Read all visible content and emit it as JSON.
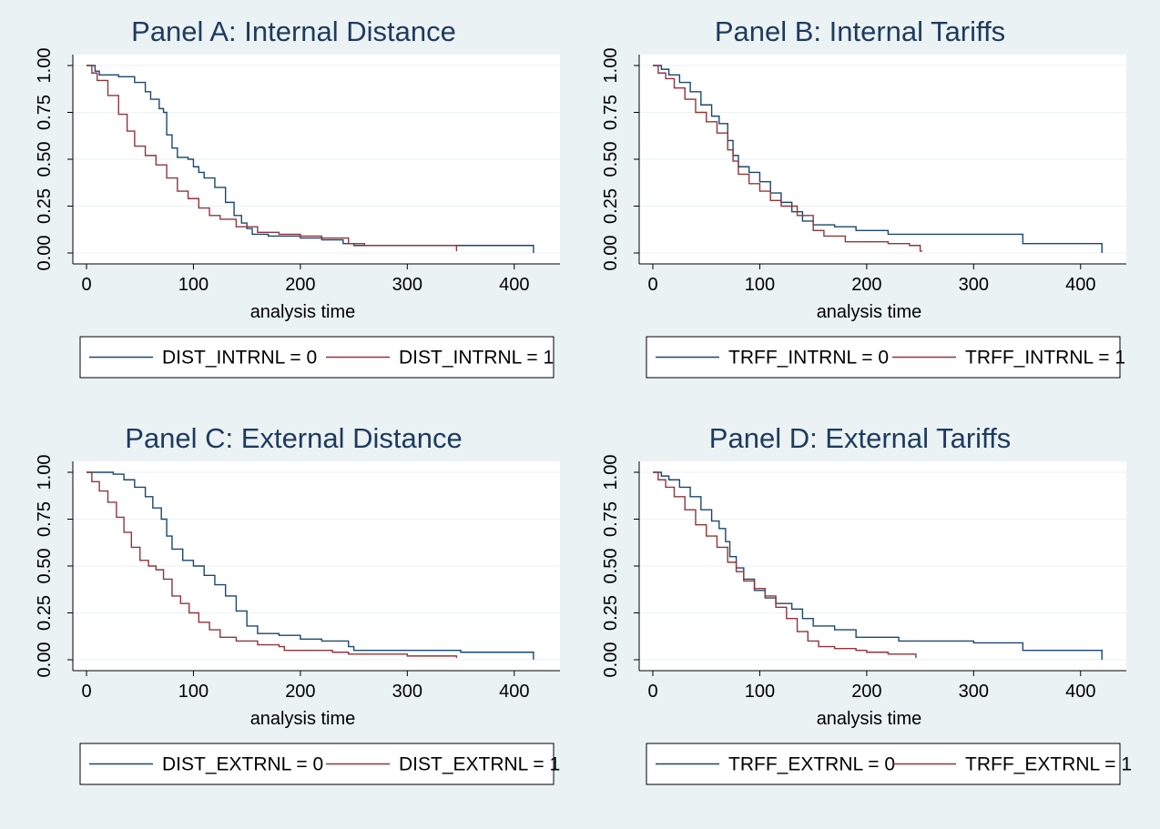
{
  "colors": {
    "background": "#eaf2f3",
    "plot_background": "#ffffff",
    "series_0": "#1a476f",
    "series_1": "#90353b",
    "title": "#1e3a5f"
  },
  "chart_data": [
    {
      "type": "line",
      "title": "Panel A: Internal Distance",
      "xlabel": "analysis time",
      "ylabel": "",
      "xlim": [
        0,
        430
      ],
      "ylim": [
        0,
        1
      ],
      "xticks": [
        "0",
        "100",
        "200",
        "300",
        "400"
      ],
      "yticks": [
        "0.00",
        "0.25",
        "0.50",
        "0.75",
        "1.00"
      ],
      "grid": true,
      "legend_position": "bottom",
      "series": [
        {
          "name": "DIST_INTRNL = 0",
          "color": "#1a476f",
          "x": [
            0,
            8,
            12,
            30,
            45,
            55,
            60,
            68,
            72,
            75,
            80,
            85,
            95,
            100,
            105,
            110,
            120,
            130,
            138,
            145,
            150,
            155,
            170,
            200,
            220,
            240,
            250,
            300,
            350,
            400,
            418
          ],
          "y": [
            1.0,
            0.97,
            0.95,
            0.94,
            0.91,
            0.86,
            0.82,
            0.77,
            0.75,
            0.63,
            0.56,
            0.51,
            0.5,
            0.46,
            0.43,
            0.4,
            0.35,
            0.27,
            0.2,
            0.16,
            0.13,
            0.1,
            0.09,
            0.08,
            0.07,
            0.05,
            0.04,
            0.04,
            0.04,
            0.04,
            0.0
          ]
        },
        {
          "name": "DIST_INTRNL = 1",
          "color": "#90353b",
          "x": [
            0,
            5,
            10,
            20,
            30,
            38,
            45,
            55,
            65,
            75,
            85,
            95,
            105,
            115,
            125,
            140,
            160,
            180,
            200,
            220,
            245,
            260,
            300,
            345,
            346
          ],
          "y": [
            1.0,
            0.96,
            0.92,
            0.84,
            0.74,
            0.65,
            0.57,
            0.52,
            0.47,
            0.4,
            0.33,
            0.29,
            0.24,
            0.2,
            0.18,
            0.14,
            0.11,
            0.1,
            0.09,
            0.08,
            0.05,
            0.04,
            0.04,
            0.04,
            0.01
          ]
        }
      ],
      "legend": [
        "DIST_INTRNL = 0",
        "DIST_INTRNL = 1"
      ]
    },
    {
      "type": "line",
      "title": "Panel B: Internal Tariffs",
      "xlabel": "analysis time",
      "ylabel": "",
      "xlim": [
        0,
        430
      ],
      "ylim": [
        0,
        1
      ],
      "xticks": [
        "0",
        "100",
        "200",
        "300",
        "400"
      ],
      "yticks": [
        "0.00",
        "0.25",
        "0.50",
        "0.75",
        "1.00"
      ],
      "grid": true,
      "legend_position": "bottom",
      "series": [
        {
          "name": "TRFF_INTRNL = 0",
          "color": "#1a476f",
          "x": [
            0,
            8,
            15,
            25,
            35,
            45,
            55,
            62,
            70,
            75,
            80,
            90,
            100,
            110,
            120,
            130,
            140,
            150,
            170,
            190,
            200,
            220,
            250,
            300,
            345,
            346,
            400,
            420
          ],
          "y": [
            1.0,
            0.98,
            0.95,
            0.91,
            0.86,
            0.79,
            0.73,
            0.69,
            0.6,
            0.52,
            0.46,
            0.43,
            0.38,
            0.32,
            0.27,
            0.22,
            0.17,
            0.15,
            0.14,
            0.12,
            0.12,
            0.1,
            0.1,
            0.1,
            0.1,
            0.05,
            0.05,
            0.0
          ]
        },
        {
          "name": "TRFF_INTRNL = 1",
          "color": "#90353b",
          "x": [
            0,
            5,
            12,
            20,
            30,
            40,
            50,
            60,
            70,
            75,
            80,
            90,
            100,
            110,
            120,
            135,
            150,
            160,
            180,
            200,
            220,
            240,
            250,
            252
          ],
          "y": [
            1.0,
            0.96,
            0.93,
            0.88,
            0.82,
            0.75,
            0.7,
            0.64,
            0.55,
            0.49,
            0.42,
            0.37,
            0.33,
            0.28,
            0.25,
            0.2,
            0.12,
            0.09,
            0.06,
            0.06,
            0.05,
            0.04,
            0.01,
            0.01
          ]
        }
      ],
      "legend": [
        "TRFF_INTRNL = 0",
        "TRFF_INTRNL = 1"
      ]
    },
    {
      "type": "line",
      "title": "Panel C: External Distance",
      "xlabel": "analysis time",
      "ylabel": "",
      "xlim": [
        0,
        430
      ],
      "ylim": [
        0,
        1
      ],
      "xticks": [
        "0",
        "100",
        "200",
        "300",
        "400"
      ],
      "yticks": [
        "0.00",
        "0.25",
        "0.50",
        "0.75",
        "1.00"
      ],
      "grid": true,
      "legend_position": "bottom",
      "series": [
        {
          "name": "DIST_EXTRNL = 0",
          "color": "#1a476f",
          "x": [
            0,
            10,
            25,
            35,
            45,
            55,
            62,
            70,
            75,
            80,
            90,
            100,
            110,
            120,
            130,
            140,
            150,
            160,
            180,
            200,
            220,
            245,
            250,
            300,
            350,
            400,
            418
          ],
          "y": [
            1.0,
            1.0,
            0.99,
            0.96,
            0.92,
            0.87,
            0.81,
            0.75,
            0.66,
            0.59,
            0.53,
            0.5,
            0.45,
            0.4,
            0.34,
            0.26,
            0.18,
            0.14,
            0.13,
            0.11,
            0.1,
            0.07,
            0.05,
            0.05,
            0.04,
            0.04,
            0.0
          ]
        },
        {
          "name": "DIST_EXTRNL = 1",
          "color": "#90353b",
          "x": [
            0,
            5,
            12,
            20,
            28,
            35,
            42,
            50,
            58,
            65,
            72,
            80,
            88,
            96,
            105,
            115,
            125,
            140,
            160,
            180,
            185,
            230,
            245,
            300,
            345,
            346
          ],
          "y": [
            1.0,
            0.95,
            0.9,
            0.84,
            0.76,
            0.68,
            0.6,
            0.53,
            0.5,
            0.48,
            0.43,
            0.34,
            0.3,
            0.25,
            0.2,
            0.16,
            0.12,
            0.1,
            0.08,
            0.07,
            0.05,
            0.04,
            0.03,
            0.02,
            0.02,
            0.01
          ]
        }
      ],
      "legend": [
        "DIST_EXTRNL = 0",
        "DIST_EXTRNL = 1"
      ]
    },
    {
      "type": "line",
      "title": "Panel D: External Tariffs",
      "xlabel": "analysis time",
      "ylabel": "",
      "xlim": [
        0,
        430
      ],
      "ylim": [
        0,
        1
      ],
      "xticks": [
        "0",
        "100",
        "200",
        "300",
        "400"
      ],
      "yticks": [
        "0.00",
        "0.25",
        "0.50",
        "0.75",
        "1.00"
      ],
      "grid": true,
      "legend_position": "bottom",
      "series": [
        {
          "name": "TRFF_EXTRNL = 0",
          "color": "#1a476f",
          "x": [
            0,
            8,
            15,
            25,
            35,
            45,
            55,
            62,
            68,
            72,
            78,
            85,
            95,
            105,
            115,
            130,
            140,
            150,
            170,
            190,
            200,
            230,
            250,
            300,
            345,
            346,
            400,
            420
          ],
          "y": [
            1.0,
            0.98,
            0.96,
            0.92,
            0.87,
            0.8,
            0.74,
            0.7,
            0.63,
            0.55,
            0.49,
            0.43,
            0.37,
            0.33,
            0.3,
            0.27,
            0.22,
            0.18,
            0.16,
            0.12,
            0.12,
            0.1,
            0.1,
            0.09,
            0.09,
            0.05,
            0.05,
            0.0
          ]
        },
        {
          "name": "TRFF_EXTRNL = 1",
          "color": "#90353b",
          "x": [
            0,
            5,
            12,
            20,
            30,
            40,
            50,
            60,
            70,
            78,
            85,
            95,
            105,
            115,
            125,
            135,
            145,
            155,
            170,
            190,
            200,
            220,
            245,
            246
          ],
          "y": [
            1.0,
            0.96,
            0.92,
            0.87,
            0.8,
            0.72,
            0.66,
            0.6,
            0.52,
            0.47,
            0.42,
            0.38,
            0.34,
            0.28,
            0.22,
            0.15,
            0.1,
            0.07,
            0.06,
            0.05,
            0.04,
            0.03,
            0.03,
            0.01
          ]
        }
      ],
      "legend": [
        "TRFF_EXTRNL = 0",
        "TRFF_EXTRNL = 1"
      ]
    }
  ]
}
